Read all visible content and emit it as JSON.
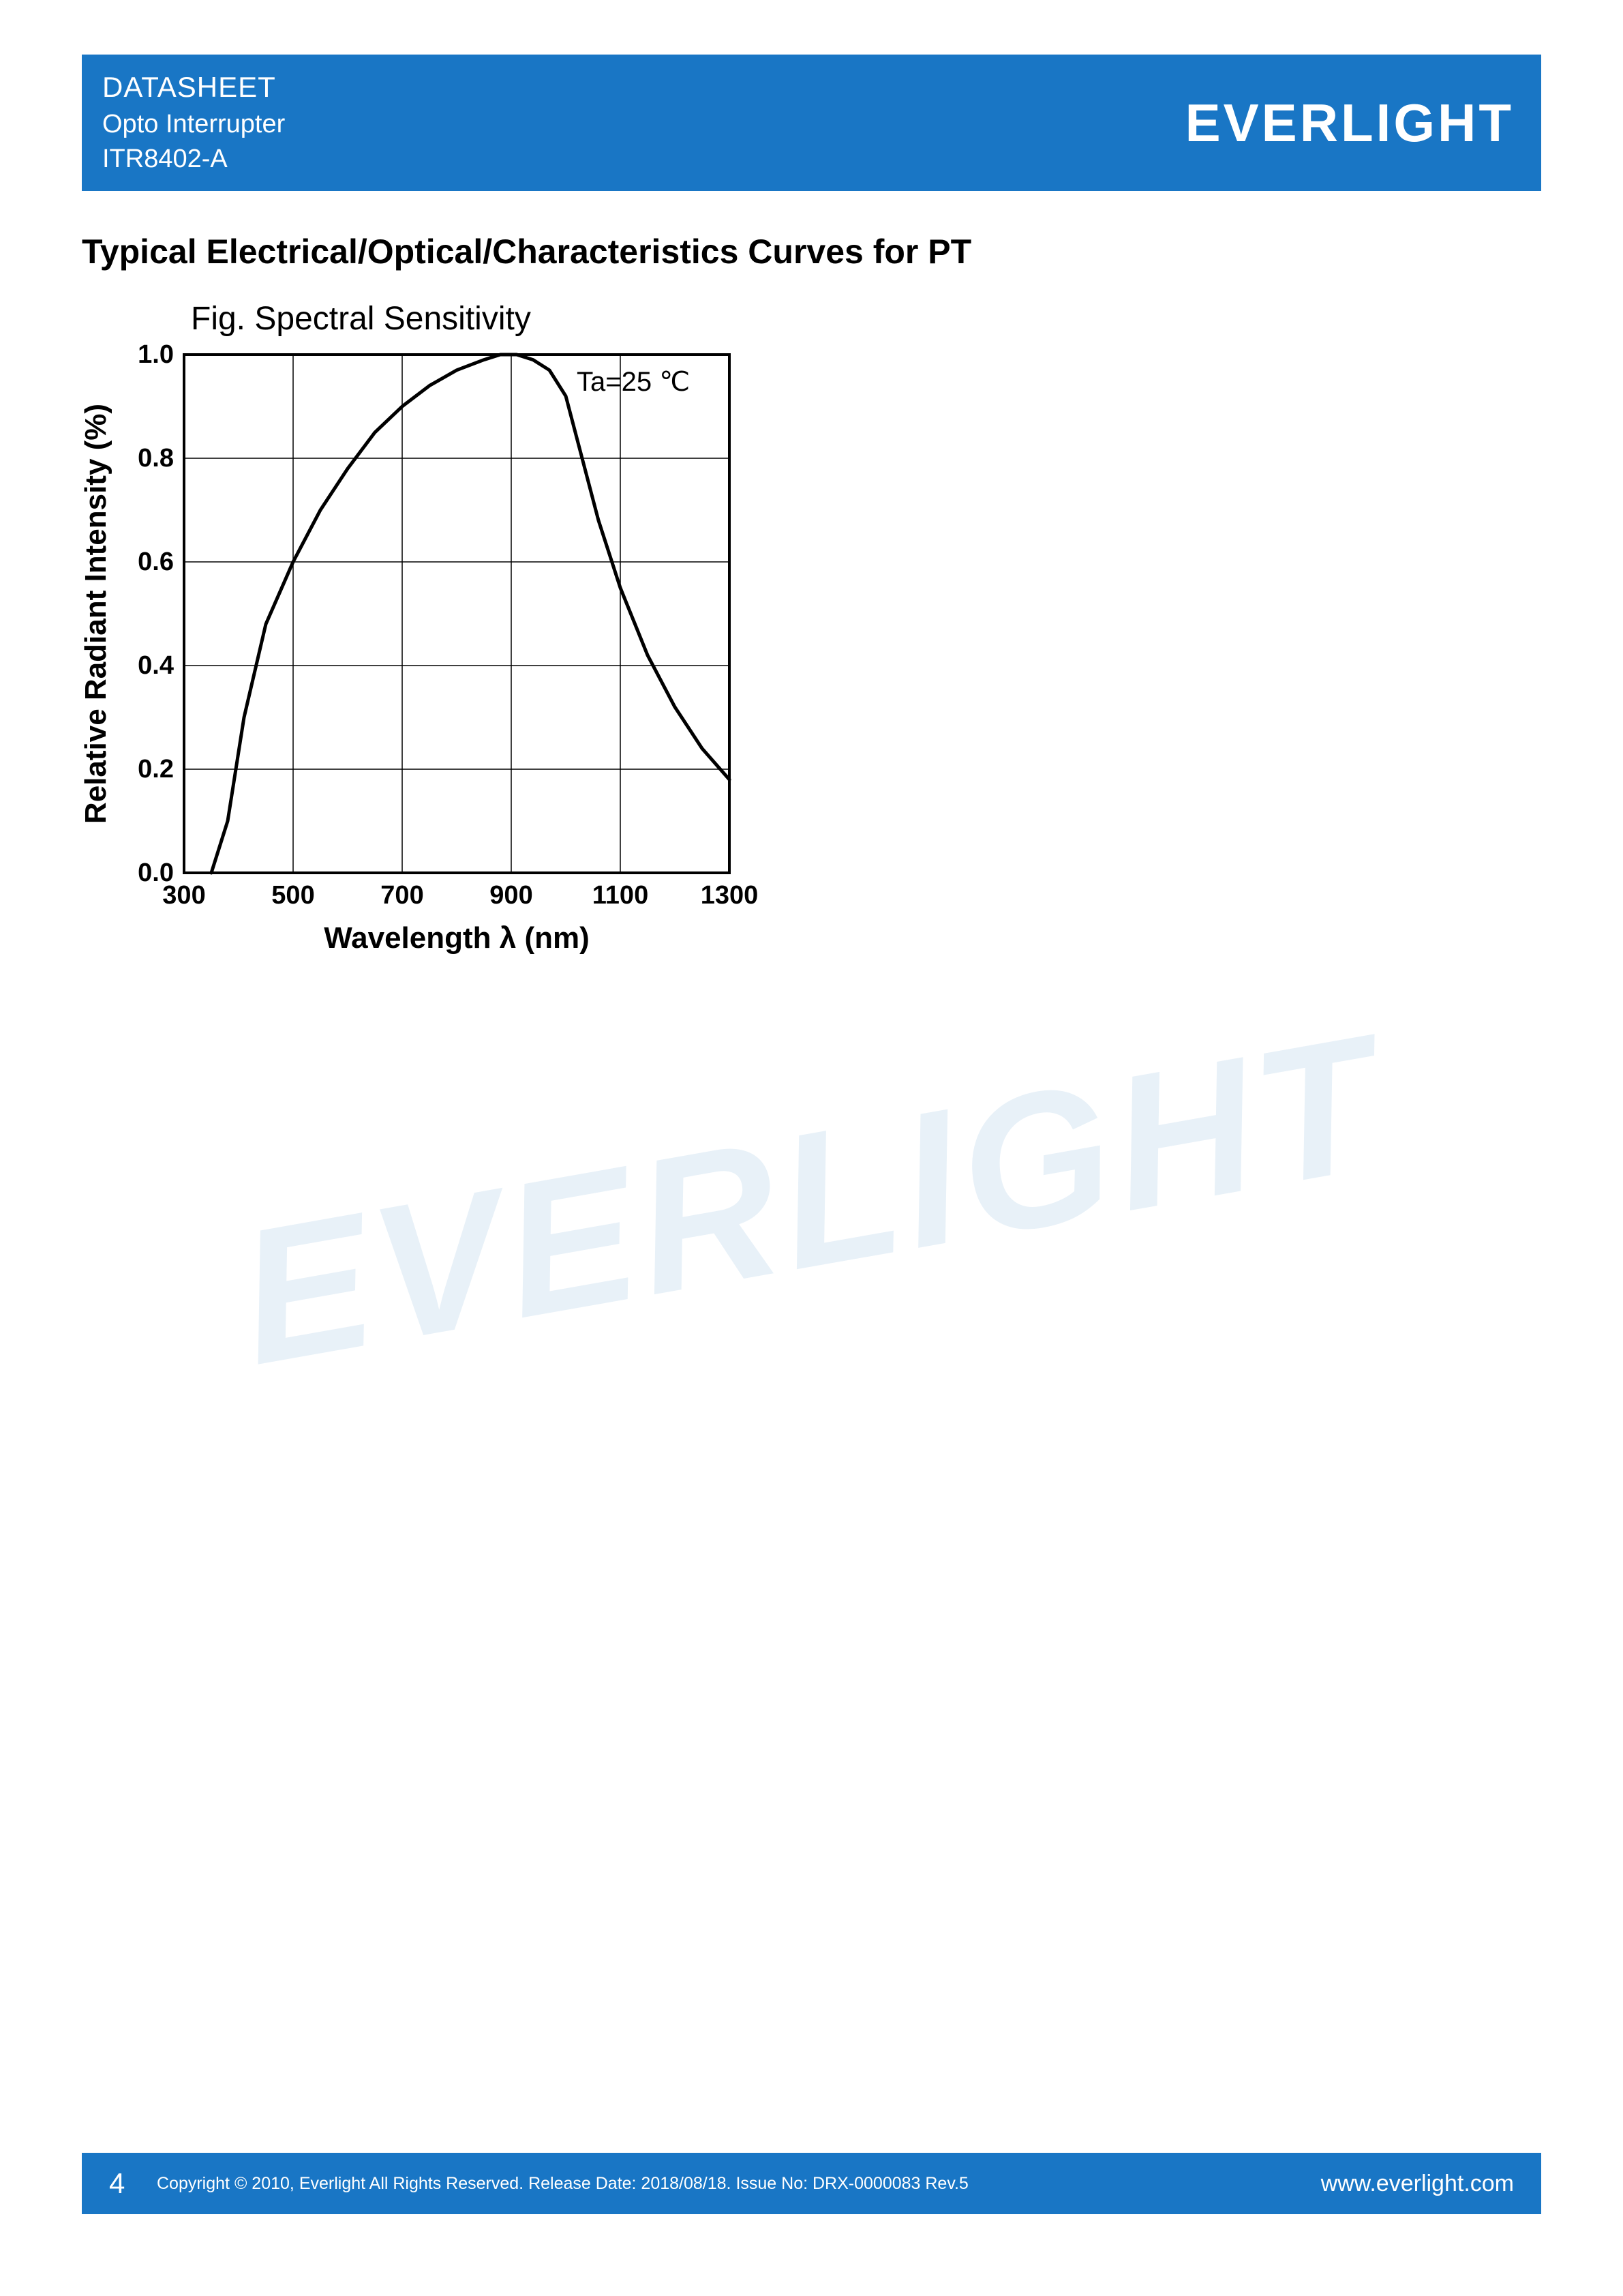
{
  "header": {
    "doc_type": "DATASHEET",
    "subtitle1": "Opto Interrupter",
    "subtitle2": "ITR8402-A",
    "brand": "EVERLIGHT",
    "bg_color": "#1976c5",
    "text_color": "#ffffff"
  },
  "section_title": "Typical Electrical/Optical/Characteristics Curves for PT",
  "figure": {
    "caption": "Fig. Spectral Sensitivity",
    "annotation": "Ta=25 ℃",
    "type": "line",
    "xlabel": "Wavelength λ (nm)",
    "ylabel": "Relative Radiant Intensity (%)",
    "xlim": [
      300,
      1300
    ],
    "ylim": [
      0.0,
      1.0
    ],
    "xticks": [
      300,
      500,
      700,
      900,
      1100,
      1300
    ],
    "yticks": [
      0.0,
      0.2,
      0.4,
      0.6,
      0.8,
      1.0
    ],
    "grid_color": "#000000",
    "axis_color": "#000000",
    "line_color": "#000000",
    "line_width": 5,
    "background_color": "#ffffff",
    "tick_fontsize": 38,
    "label_fontsize": 44,
    "label_fontweight": "bold",
    "curve": [
      [
        350,
        0.0
      ],
      [
        380,
        0.1
      ],
      [
        410,
        0.3
      ],
      [
        450,
        0.48
      ],
      [
        500,
        0.6
      ],
      [
        550,
        0.7
      ],
      [
        600,
        0.78
      ],
      [
        650,
        0.85
      ],
      [
        700,
        0.9
      ],
      [
        750,
        0.94
      ],
      [
        800,
        0.97
      ],
      [
        850,
        0.99
      ],
      [
        880,
        1.0
      ],
      [
        910,
        1.0
      ],
      [
        940,
        0.99
      ],
      [
        970,
        0.97
      ],
      [
        1000,
        0.92
      ],
      [
        1030,
        0.8
      ],
      [
        1060,
        0.68
      ],
      [
        1100,
        0.55
      ],
      [
        1150,
        0.42
      ],
      [
        1200,
        0.32
      ],
      [
        1250,
        0.24
      ],
      [
        1300,
        0.18
      ]
    ]
  },
  "watermark": "EVERLIGHT",
  "footer": {
    "page_number": "4",
    "copyright": "Copyright © 2010, Everlight All Rights Reserved. Release Date: 2018/08/18. Issue No: DRX-0000083 Rev.5",
    "url": "www.everlight.com",
    "bg_color": "#1976c5",
    "text_color": "#ffffff"
  }
}
